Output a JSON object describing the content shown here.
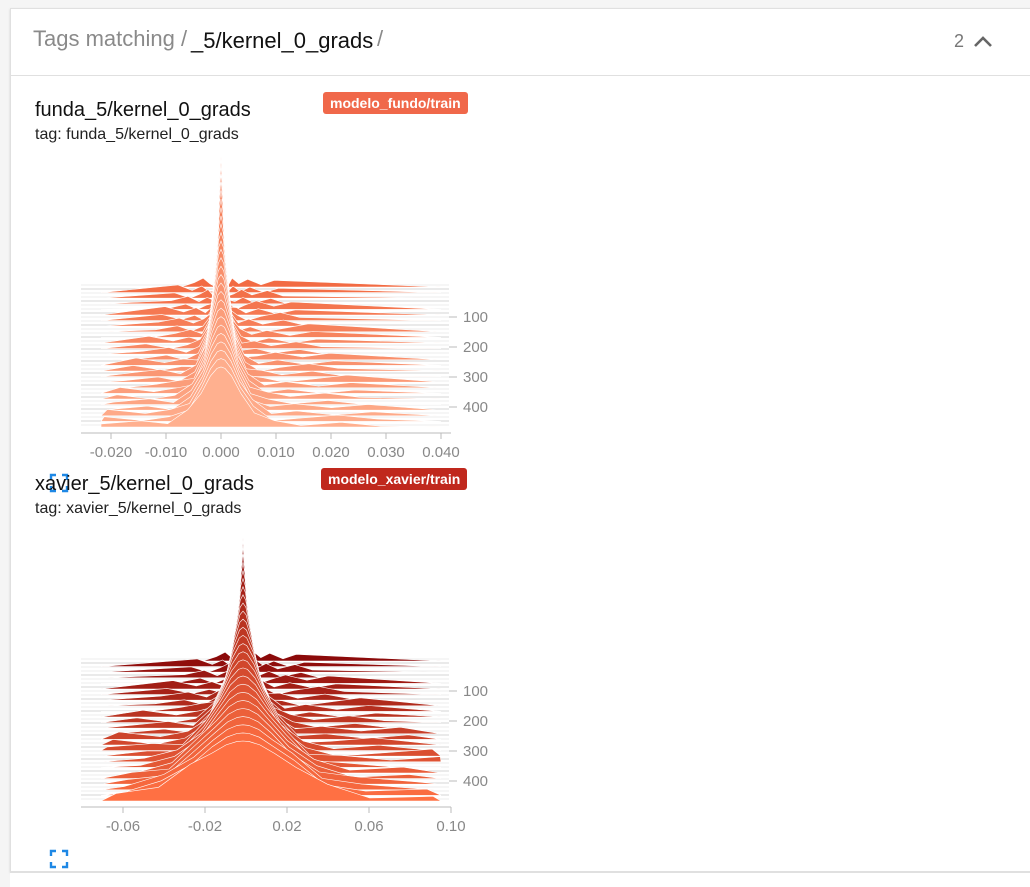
{
  "header": {
    "prefix": "Tags matching /",
    "query": "_5/kernel_0_grads",
    "suffix": "/",
    "count": "2"
  },
  "cards": [
    {
      "title": "funda_5/kernel_0_grads",
      "tag": "tag: funda_5/kernel_0_grads",
      "run": "modelo_fundo/train",
      "run_color": "#f0684a",
      "x_ticks": [
        "-0.020",
        "-0.010",
        "0.000",
        "0.010",
        "0.020",
        "0.030",
        "0.040"
      ],
      "y_ticks": [
        "100",
        "200",
        "300",
        "400"
      ],
      "colors": {
        "back": "#f26b43",
        "front": "#ffb08f"
      }
    },
    {
      "title": "xavier_5/kernel_0_grads",
      "tag": "tag: xavier_5/kernel_0_grads",
      "run": "modelo_xavier/train",
      "run_color": "#c0281d",
      "x_ticks": [
        "-0.06",
        "-0.02",
        "0.02",
        "0.06",
        "0.10"
      ],
      "y_ticks": [
        "100",
        "200",
        "300",
        "400"
      ],
      "colors": {
        "back": "#8b0a0a",
        "front": "#ff7043"
      }
    }
  ],
  "icons": {
    "chevron": "chevron-up-icon",
    "expand": "fullscreen-icon"
  }
}
